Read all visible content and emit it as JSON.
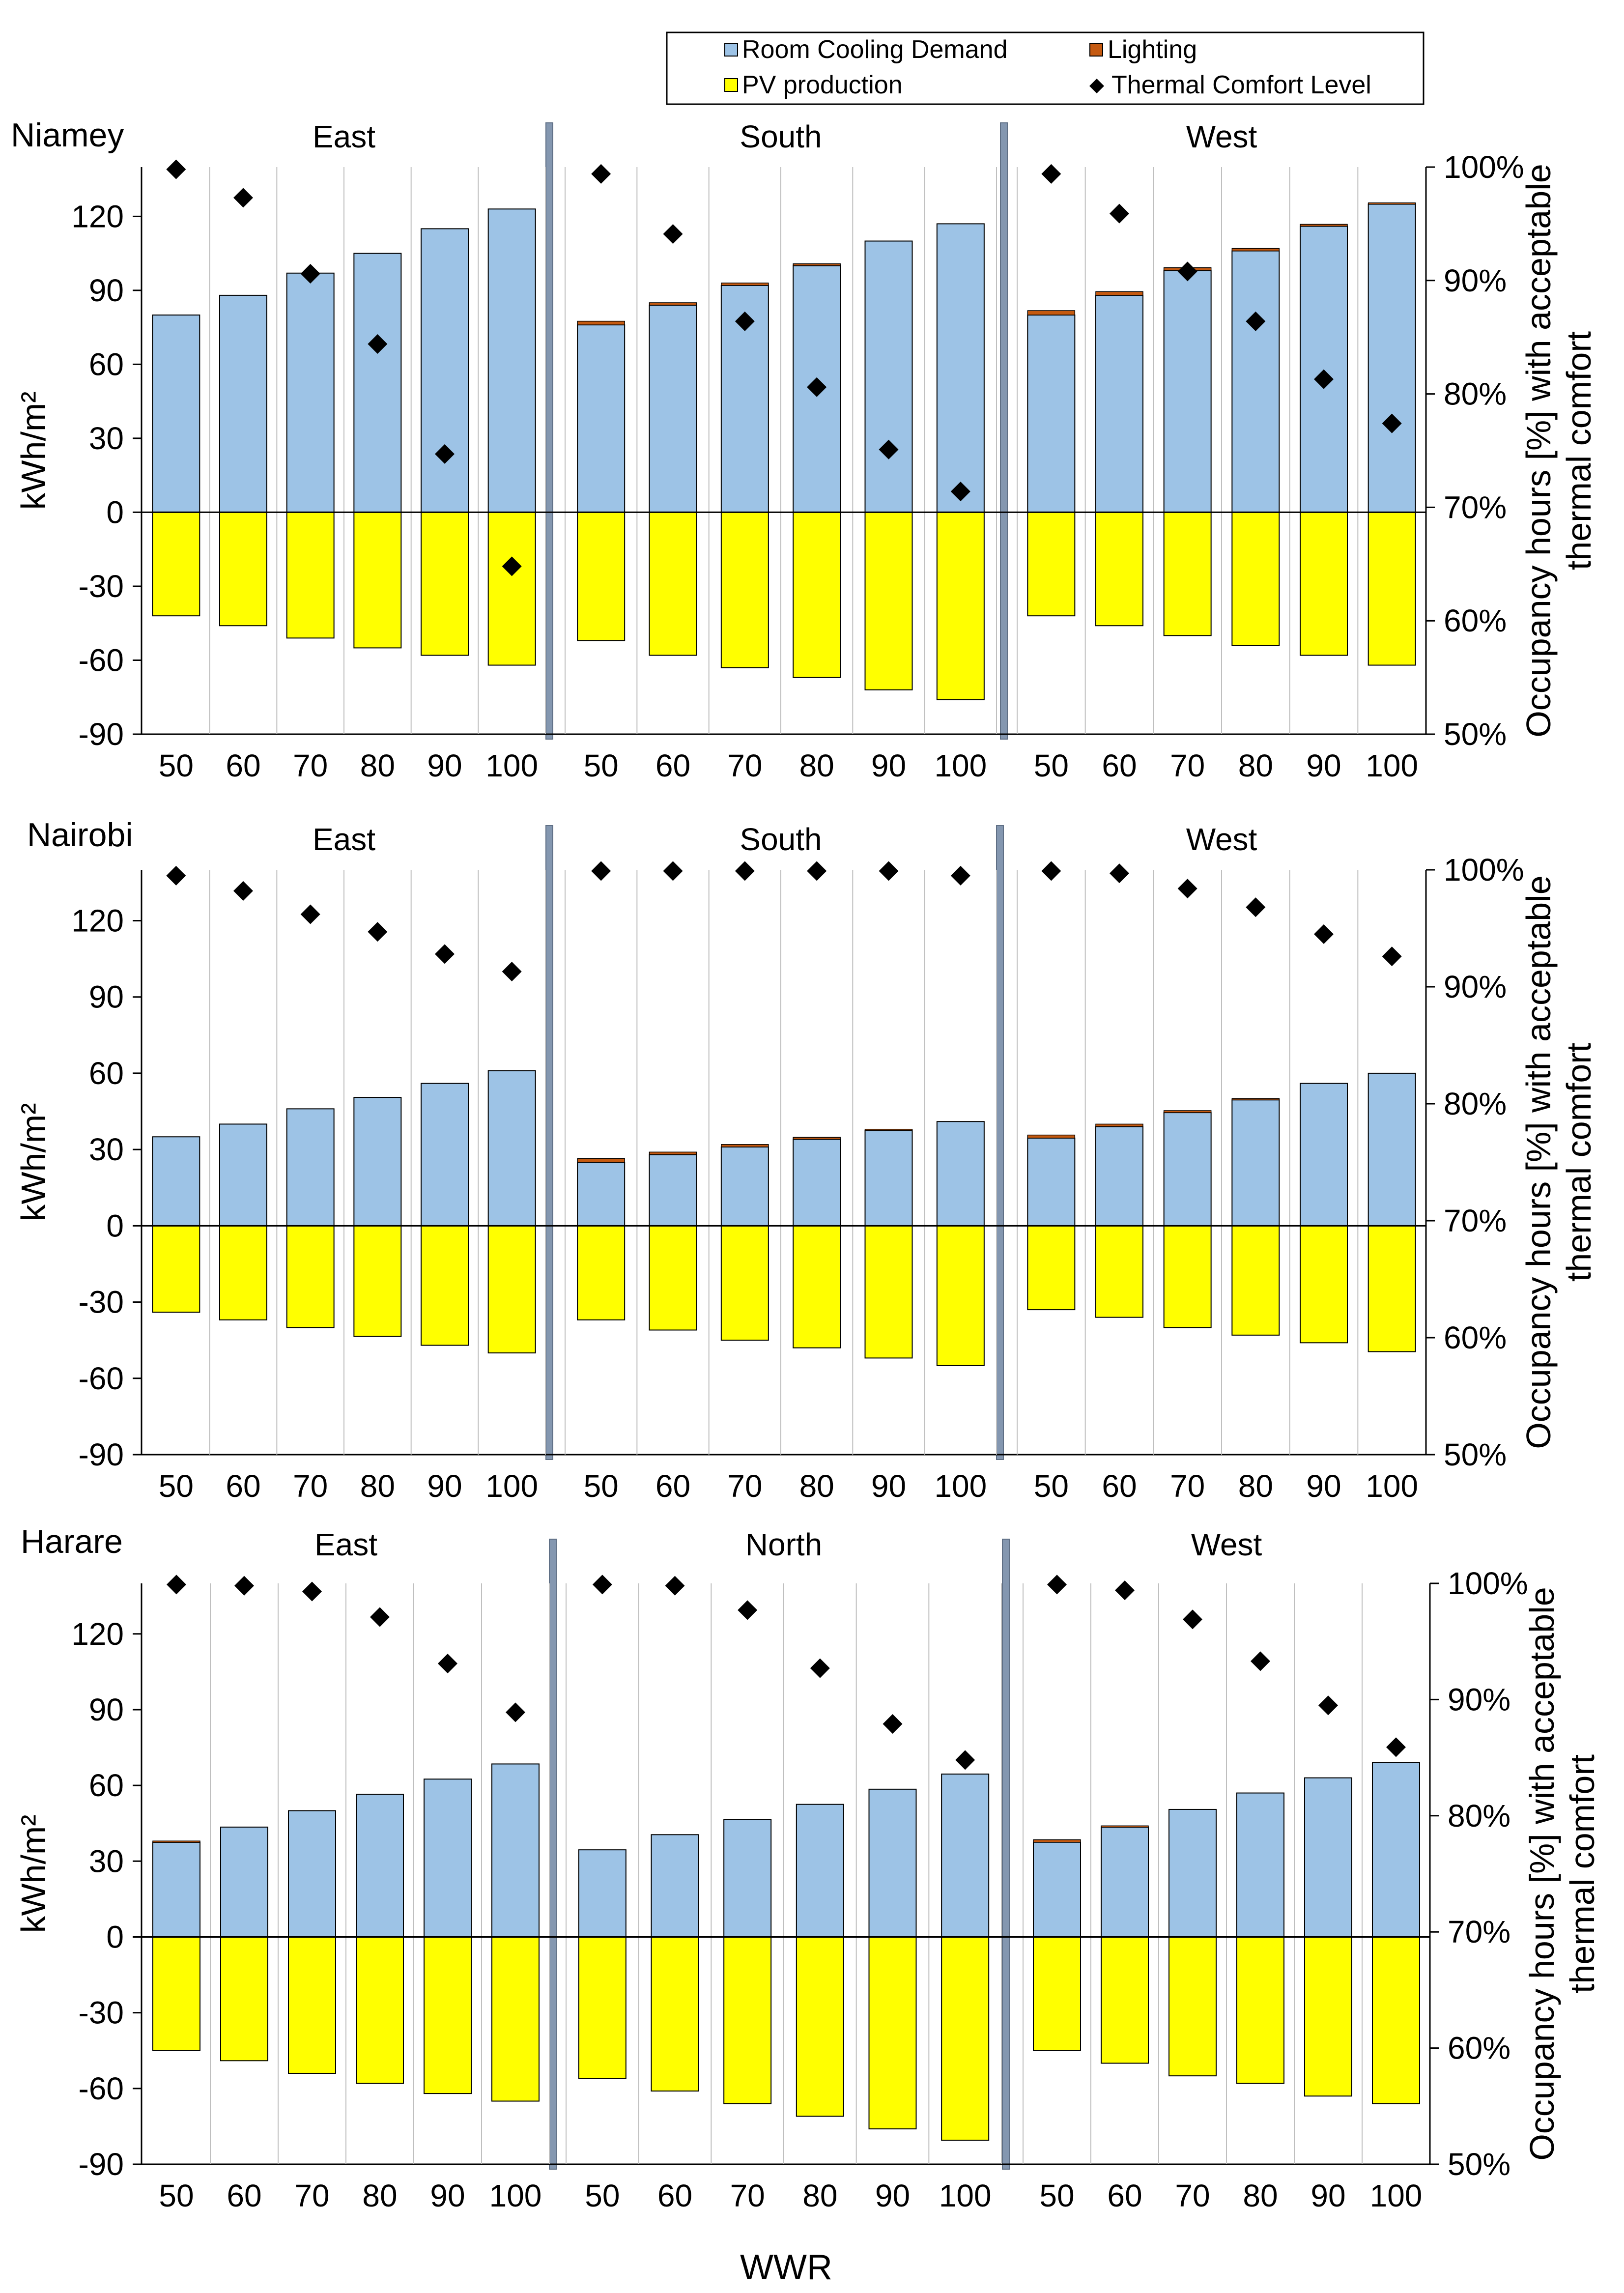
{
  "chart_data": [
    {
      "type": "bar",
      "city": "Niamey",
      "ylabel": "kWh/m²",
      "y2label_line1": "Occupancy hours [%] with acceptable",
      "y2label_line2": "thermal comfort",
      "ylim": [
        -90,
        140
      ],
      "yticks": [
        120,
        90,
        60,
        30,
        0,
        -30,
        -60,
        -90
      ],
      "y2lim": [
        50,
        100
      ],
      "y2ticks": [
        "100%",
        "90%",
        "80%",
        "70%",
        "60%",
        "50%"
      ],
      "y2tick_values": [
        100,
        90,
        80,
        70,
        60,
        50
      ],
      "categories": [
        "50",
        "60",
        "70",
        "80",
        "90",
        "100"
      ],
      "groups": [
        {
          "orientation": "East",
          "cooling": [
            80,
            88,
            97,
            105,
            115,
            123
          ],
          "lighting": [
            0,
            0,
            0,
            0,
            0,
            0
          ],
          "pv": [
            -42,
            -46,
            -51,
            -55,
            -58,
            -62
          ],
          "comfort": [
            99.8,
            97.3,
            90.6,
            84.4,
            74.7,
            64.8
          ]
        },
        {
          "orientation": "South",
          "cooling": [
            76,
            84,
            92,
            100,
            110,
            117
          ],
          "lighting": [
            1.5,
            1,
            1,
            0.8,
            0,
            0
          ],
          "pv": [
            -52,
            -58,
            -63,
            -67,
            -72,
            -76
          ],
          "comfort": [
            99.4,
            94.1,
            86.4,
            80.6,
            75.1,
            71.4
          ]
        },
        {
          "orientation": "West",
          "cooling": [
            80,
            88,
            98,
            106,
            116,
            125
          ],
          "lighting": [
            1.8,
            1.5,
            1.2,
            1,
            0.8,
            0.5
          ],
          "pv": [
            -42,
            -46,
            -50,
            -54,
            -58,
            -62
          ],
          "comfort": [
            99.4,
            95.9,
            90.8,
            86.4,
            81.3,
            77.4
          ]
        }
      ]
    },
    {
      "type": "bar",
      "city": "Nairobi",
      "ylabel": "kWh/m²",
      "y2label_line1": "Occupancy hours [%] with acceptable",
      "y2label_line2": "thermal comfort",
      "ylim": [
        -90,
        140
      ],
      "yticks": [
        120,
        90,
        60,
        30,
        0,
        -30,
        -60,
        -90
      ],
      "y2lim": [
        50,
        100
      ],
      "y2ticks": [
        "100%",
        "90%",
        "80%",
        "70%",
        "60%",
        "50%"
      ],
      "y2tick_values": [
        100,
        90,
        80,
        70,
        60,
        50
      ],
      "categories": [
        "50",
        "60",
        "70",
        "80",
        "90",
        "100"
      ],
      "groups": [
        {
          "orientation": "East",
          "cooling": [
            35,
            40,
            46,
            50.5,
            56,
            61
          ],
          "lighting": [
            0,
            0,
            0,
            0,
            0,
            0
          ],
          "pv": [
            -34,
            -37,
            -40,
            -43.5,
            -47,
            -50
          ],
          "comfort": [
            99.5,
            98.2,
            96.2,
            94.7,
            92.8,
            91.3
          ]
        },
        {
          "orientation": "South",
          "cooling": [
            25,
            28,
            31,
            34,
            37.5,
            41
          ],
          "lighting": [
            1.5,
            1,
            1,
            0.8,
            0.5,
            0
          ],
          "pv": [
            -37,
            -41,
            -45,
            -48,
            -52,
            -55
          ],
          "comfort": [
            99.9,
            99.9,
            99.9,
            99.9,
            99.9,
            99.5
          ]
        },
        {
          "orientation": "West",
          "cooling": [
            34.5,
            39,
            44.5,
            49.5,
            56,
            60
          ],
          "lighting": [
            1.2,
            1,
            0.8,
            0.6,
            0,
            0
          ],
          "pv": [
            -33,
            -36,
            -40,
            -43,
            -46,
            -49.5
          ],
          "comfort": [
            99.9,
            99.7,
            98.4,
            96.8,
            94.5,
            92.6
          ]
        }
      ]
    },
    {
      "type": "bar",
      "city": "Harare",
      "ylabel": "kWh/m²",
      "y2label_line1": "Occupancy hours [%] with acceptable",
      "y2label_line2": "thermal comfort",
      "ylim": [
        -90,
        140
      ],
      "yticks": [
        120,
        90,
        60,
        30,
        0,
        -30,
        -60,
        -90
      ],
      "y2lim": [
        50,
        100
      ],
      "y2ticks": [
        "100%",
        "90%",
        "80%",
        "70%",
        "60%",
        "50%"
      ],
      "y2tick_values": [
        100,
        90,
        80,
        70,
        60,
        50
      ],
      "categories": [
        "50",
        "60",
        "70",
        "80",
        "90",
        "100"
      ],
      "groups": [
        {
          "orientation": "East",
          "cooling": [
            37.5,
            43.5,
            50,
            56.5,
            62.5,
            68.5
          ],
          "lighting": [
            0.5,
            0,
            0,
            0,
            0,
            0
          ],
          "pv": [
            -45,
            -49,
            -54,
            -58,
            -62,
            -65
          ],
          "comfort": [
            99.9,
            99.8,
            99.3,
            97.1,
            93.1,
            88.9
          ]
        },
        {
          "orientation": "North",
          "cooling": [
            34.5,
            40.5,
            46.5,
            52.5,
            58.5,
            64.5
          ],
          "lighting": [
            0,
            0,
            0,
            0,
            0,
            0
          ],
          "pv": [
            -56,
            -61,
            -66,
            -71,
            -76,
            -80.5
          ],
          "comfort": [
            99.9,
            99.8,
            97.7,
            92.7,
            87.9,
            84.8
          ]
        },
        {
          "orientation": "West",
          "cooling": [
            37.5,
            43.5,
            50.5,
            57,
            63,
            69
          ],
          "lighting": [
            1,
            0.5,
            0,
            0,
            0,
            0
          ],
          "pv": [
            -45,
            -50,
            -55,
            -58,
            -63,
            -66
          ],
          "comfort": [
            99.9,
            99.4,
            96.9,
            93.3,
            89.5,
            85.9
          ]
        }
      ]
    }
  ],
  "legend": {
    "cooling": "Room Cooling Demand",
    "lighting": "Lighting",
    "pv": "PV production",
    "comfort": "Thermal Comfort Level"
  },
  "xlabel": "WWR",
  "colors": {
    "cooling": "#9dc3e6",
    "lighting": "#c55a11",
    "pv": "#ffff00",
    "comfort": "#000000",
    "separator": "#8497b0",
    "gridline": "#bfbfbf"
  }
}
